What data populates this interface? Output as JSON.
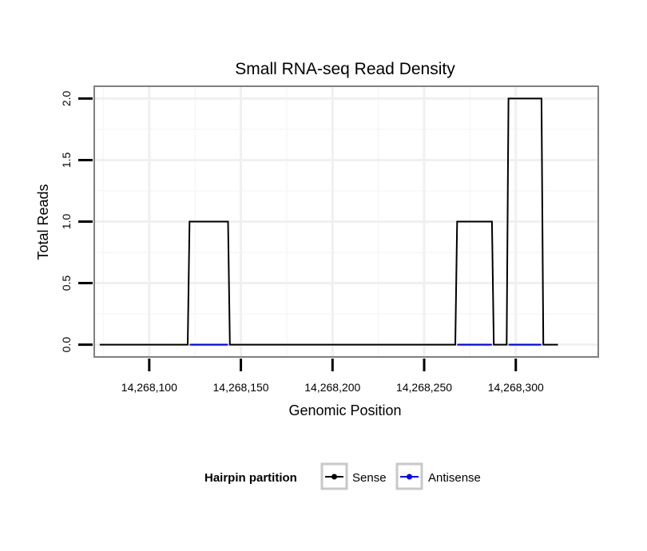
{
  "chart_data": {
    "type": "line",
    "title": "Small RNA-seq Read Density",
    "xlabel": "Genomic Position",
    "ylabel": "Total Reads",
    "xlim": [
      14268070,
      14268345
    ],
    "ylim": [
      -0.1,
      2.1
    ],
    "x_ticks": [
      14268100,
      14268150,
      14268200,
      14268250,
      14268300
    ],
    "x_tick_labels": [
      "14,268,100",
      "14,268,150",
      "14,268,200",
      "14,268,250",
      "14,268,300"
    ],
    "y_ticks": [
      0,
      0.5,
      1,
      1.5,
      2
    ],
    "y_tick_labels": [
      "0.0",
      "0.5",
      "1.0",
      "1.5",
      "2.0"
    ],
    "grid": true,
    "legend": {
      "title": "Hairpin partition",
      "position": "bottom",
      "entries": [
        {
          "name": "Sense",
          "color": "#000000"
        },
        {
          "name": "Antisense",
          "color": "#0000ff"
        }
      ]
    },
    "series": [
      {
        "name": "Sense",
        "color": "#000000",
        "x": [
          14268073,
          14268121,
          14268122,
          14268143,
          14268144,
          14268267,
          14268268,
          14268287,
          14268288,
          14268295,
          14268296,
          14268314,
          14268315,
          14268323
        ],
        "y": [
          0,
          0,
          1,
          1,
          0,
          0,
          1,
          1,
          0,
          0,
          2,
          2,
          0,
          0
        ]
      },
      {
        "name": "Antisense",
        "color": "#0000ff",
        "x": [
          14268122,
          14268143,
          14268268,
          14268287,
          14268296,
          14268314
        ],
        "y": [
          0,
          0,
          0,
          0,
          0,
          0
        ]
      }
    ]
  }
}
